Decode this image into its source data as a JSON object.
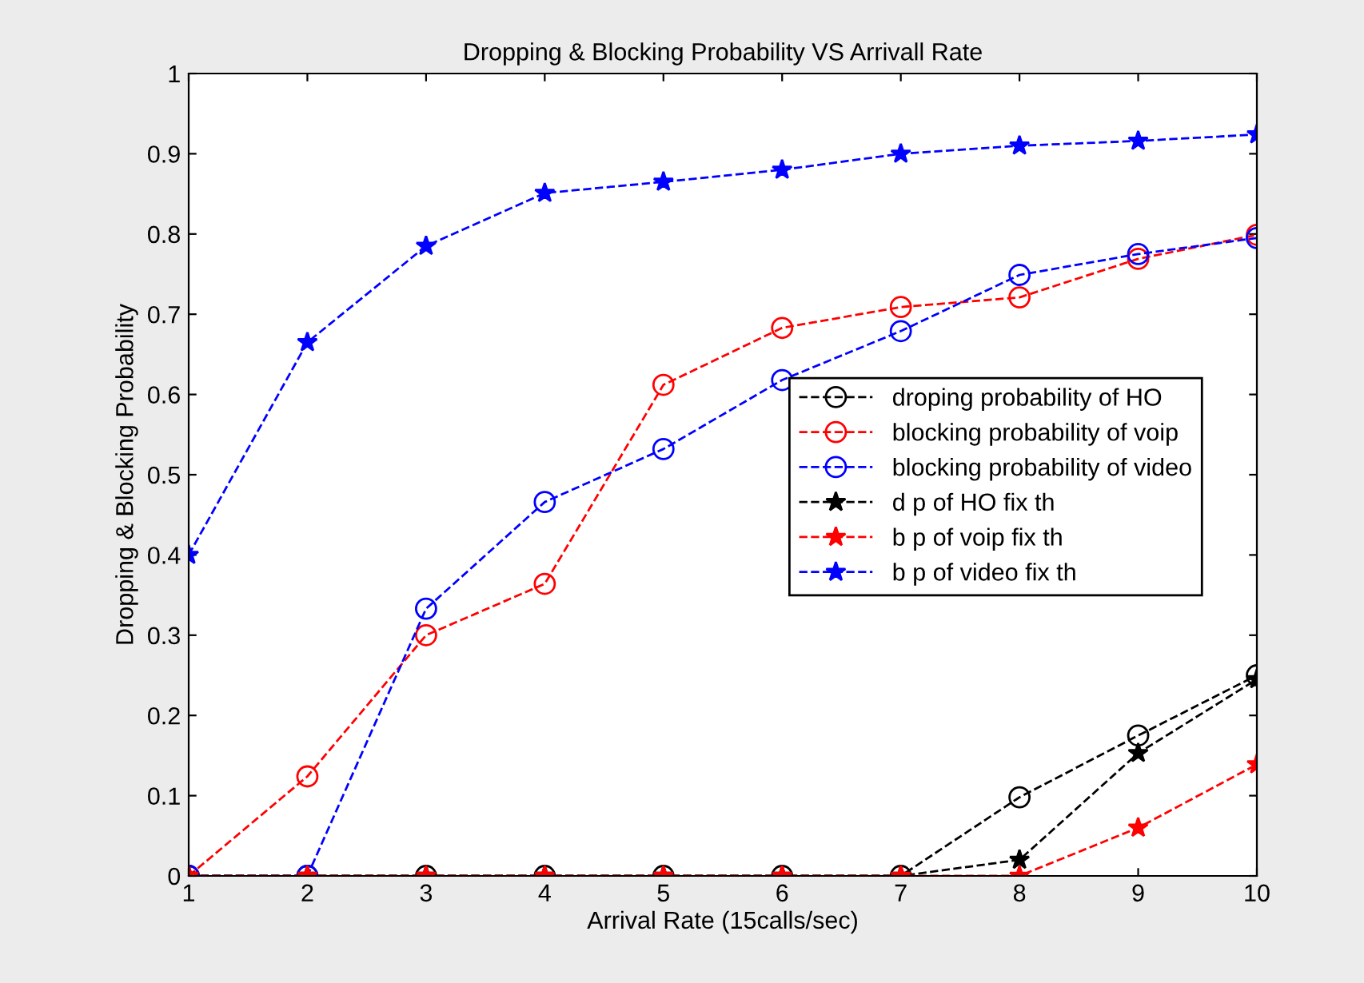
{
  "chart_data": {
    "type": "line",
    "title": "Dropping & Blocking Probability VS Arrivall Rate",
    "xlabel": "Arrival Rate (15calls/sec)",
    "ylabel": "Dropping & Blocking Probability",
    "x": [
      1,
      2,
      3,
      4,
      5,
      6,
      7,
      8,
      9,
      10
    ],
    "series": [
      {
        "name": "droping probability of HO",
        "color": "#000000",
        "marker": "circle",
        "values": [
          0,
          0,
          0,
          0,
          0,
          0,
          0,
          0.098,
          0.175,
          0.25
        ]
      },
      {
        "name": "blocking probability of voip",
        "color": "#ff0000",
        "marker": "circle",
        "values": [
          0,
          0.124,
          0.3,
          0.364,
          0.612,
          0.683,
          0.709,
          0.721,
          0.769,
          0.799
        ]
      },
      {
        "name": "blocking probability of video",
        "color": "#0000ff",
        "marker": "circle",
        "values": [
          0,
          0,
          0.333,
          0.466,
          0.532,
          0.618,
          0.679,
          0.749,
          0.775,
          0.795
        ]
      },
      {
        "name": "d p of HO fix th",
        "color": "#000000",
        "marker": "star",
        "values": [
          0,
          0,
          0,
          0,
          0,
          0,
          0,
          0.02,
          0.153,
          0.245
        ]
      },
      {
        "name": "b p of voip fix th",
        "color": "#ff0000",
        "marker": "star",
        "values": [
          0,
          0,
          0,
          0,
          0,
          0,
          0,
          0,
          0.06,
          0.139
        ]
      },
      {
        "name": "b p of video fix th",
        "color": "#0000ff",
        "marker": "star",
        "values": [
          0.4,
          0.665,
          0.785,
          0.851,
          0.865,
          0.88,
          0.9,
          0.91,
          0.916,
          0.924
        ]
      }
    ],
    "xlim": [
      1,
      10
    ],
    "xticks": [
      1,
      2,
      3,
      4,
      5,
      6,
      7,
      8,
      9,
      10
    ],
    "ylim": [
      0,
      1
    ],
    "yticks": [
      0,
      0.1,
      0.2,
      0.3,
      0.4,
      0.5,
      0.6,
      0.7,
      0.8,
      0.9,
      1
    ],
    "line_style": "dashed",
    "grid": false,
    "legend": "center right"
  }
}
